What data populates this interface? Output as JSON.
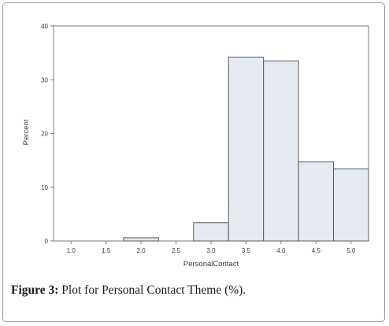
{
  "caption": {
    "label": "Figure 3:",
    "text": " Plot for Personal Contact Theme (%)."
  },
  "chart_data": {
    "type": "bar",
    "xlabel": "PersonalContact",
    "ylabel": "Percent",
    "xlim": [
      0.75,
      5.25
    ],
    "ylim": [
      0,
      40
    ],
    "x_ticks": [
      1.0,
      1.5,
      2.0,
      2.5,
      3.0,
      3.5,
      4.0,
      4.5,
      5.0
    ],
    "x_tick_labels": [
      "1.0",
      "1.5",
      "2.0",
      "2.5",
      "3.0",
      "3.5",
      "4.0",
      "4.5",
      "5.0"
    ],
    "y_ticks": [
      0,
      10,
      20,
      30,
      40
    ],
    "y_tick_labels": [
      "0",
      "10",
      "20",
      "30",
      "40"
    ],
    "bin_width": 0.5,
    "bars": [
      {
        "center": 2.0,
        "value": 0.6
      },
      {
        "center": 3.0,
        "value": 3.4
      },
      {
        "center": 3.5,
        "value": 34.2
      },
      {
        "center": 4.0,
        "value": 33.5
      },
      {
        "center": 4.5,
        "value": 14.7
      },
      {
        "center": 5.0,
        "value": 13.4
      }
    ],
    "grid": false,
    "bar_fill": "#e6ebf2",
    "bar_stroke": "#545a64",
    "axis_color": "#7a7a7a"
  }
}
